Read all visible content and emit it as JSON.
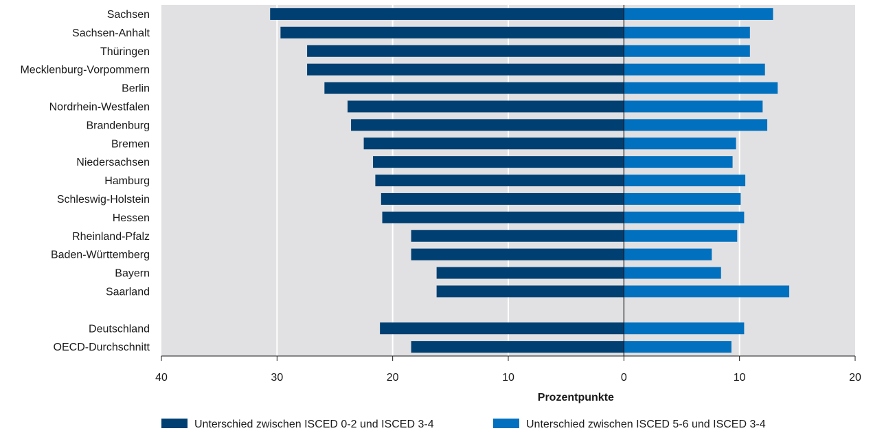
{
  "chart_data": {
    "type": "bar",
    "orientation": "horizontal",
    "xlabel": "Prozentpunkte",
    "xlim": [
      -40,
      20
    ],
    "xticks": [
      -40,
      -30,
      -20,
      -10,
      0,
      10,
      20
    ],
    "xtick_labels": [
      "40",
      "30",
      "20",
      "10",
      "0",
      "10",
      "20"
    ],
    "grid": true,
    "legend_position": "bottom",
    "categories": [
      "Sachsen",
      "Sachsen-Anhalt",
      "Thüringen",
      "Mecklenburg-Vorpommern",
      "Berlin",
      "Nordrhein-Westfalen",
      "Brandenburg",
      "Bremen",
      "Niedersachsen",
      "Hamburg",
      "Schleswig-Holstein",
      "Hessen",
      "Rheinland-Pfalz",
      "Baden-Württemberg",
      "Bayern",
      "Saarland",
      "",
      "Deutschland",
      "OECD-Durchschnitt"
    ],
    "series": [
      {
        "name": "Unterschied zwischen ISCED 0-2 und ISCED 3-4",
        "color": "#003f72",
        "values": [
          -30.6,
          -29.7,
          -27.4,
          -27.4,
          -25.9,
          -23.9,
          -23.6,
          -22.5,
          -21.7,
          -21.5,
          -21.0,
          -20.9,
          -18.4,
          -18.4,
          -16.2,
          -16.2,
          null,
          -21.1,
          -18.4
        ]
      },
      {
        "name": "Unterschied zwischen ISCED 5-6 und ISCED 3-4",
        "color": "#0070bf",
        "values": [
          12.9,
          10.9,
          10.9,
          12.2,
          13.3,
          12.0,
          12.4,
          9.7,
          9.4,
          10.5,
          10.1,
          10.4,
          9.8,
          7.6,
          8.4,
          14.3,
          null,
          10.4,
          9.3
        ]
      }
    ]
  },
  "colors": {
    "plot_background": "#e1e1e3",
    "gridline": "#ffffff",
    "zero_line": "#1a1a1a"
  }
}
